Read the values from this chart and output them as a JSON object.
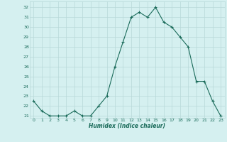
{
  "x": [
    0,
    1,
    2,
    3,
    4,
    5,
    6,
    7,
    8,
    9,
    10,
    11,
    12,
    13,
    14,
    15,
    16,
    17,
    18,
    19,
    20,
    21,
    22,
    23
  ],
  "y": [
    22.5,
    21.5,
    21.0,
    21.0,
    21.0,
    21.5,
    21.0,
    21.0,
    22.0,
    23.0,
    26.0,
    28.5,
    31.0,
    31.5,
    31.0,
    32.0,
    30.5,
    30.0,
    29.0,
    28.0,
    24.5,
    24.5,
    22.5,
    21.0
  ],
  "line_color": "#1a6b5a",
  "marker": "+",
  "marker_color": "#1a6b5a",
  "xlabel": "Humidex (Indice chaleur)",
  "xlim": [
    -0.5,
    23.5
  ],
  "ylim": [
    20.8,
    32.6
  ],
  "yticks": [
    21,
    22,
    23,
    24,
    25,
    26,
    27,
    28,
    29,
    30,
    31,
    32
  ],
  "xticks": [
    0,
    1,
    2,
    3,
    4,
    5,
    6,
    7,
    8,
    9,
    10,
    11,
    12,
    13,
    14,
    15,
    16,
    17,
    18,
    19,
    20,
    21,
    22,
    23
  ],
  "bg_color": "#d5f0f0",
  "grid_color": "#b8d8d8",
  "font_color": "#1a6b5a"
}
